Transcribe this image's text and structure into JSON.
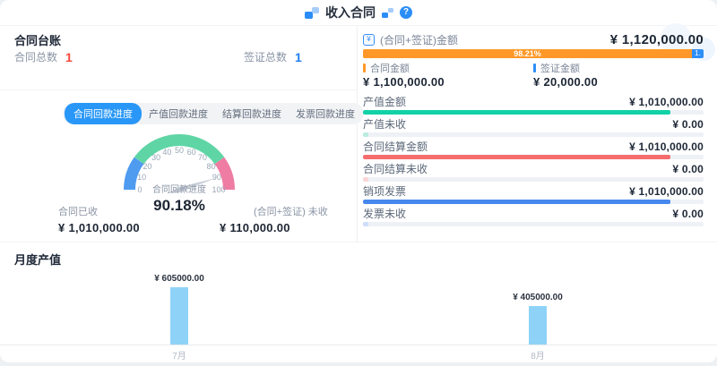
{
  "colors": {
    "accent_blue": "#2997f7",
    "stat_red": "#f5483b",
    "stat_blue": "#2080f0",
    "orange": "#ff9828",
    "bar_blue": "#2e8ef7",
    "teal": "#12d1a7",
    "coral": "#f56d6d",
    "royal_blue": "#4787ee",
    "monthly_bar_blue": "#8ed3f7",
    "gauge_blue": "#4f9bf0",
    "gauge_green": "#5fd5a5",
    "gauge_pink": "#ee7ca3",
    "needle_gray": "#cbd1d9"
  },
  "header": {
    "title": "收入合同",
    "help": "?"
  },
  "ledger": {
    "title": "合同台账",
    "stats": [
      {
        "label": "合同总数",
        "value": "1",
        "color": "#f5483b"
      },
      {
        "label": "签证总数",
        "value": "1",
        "color": "#2080f0"
      }
    ],
    "tabs": [
      {
        "label": "合同回款进度",
        "active": true
      },
      {
        "label": "产值回款进度",
        "active": false
      },
      {
        "label": "结算回款进度",
        "active": false
      },
      {
        "label": "发票回款进度",
        "active": false
      }
    ],
    "received": {
      "label": "合同已收",
      "value": "¥ 1,010,000.00"
    },
    "unreceived": {
      "label": "(合同+签证) 未收",
      "value": "¥ 110,000.00"
    }
  },
  "summary": {
    "total": {
      "label": "(合同+签证)金额",
      "value": "¥ 1,120,000.00"
    },
    "bar": {
      "contract_pct_label": "98.21%",
      "visa_pct_label": "1.",
      "contract_color": "#ff9828",
      "visa_color": "#2e8ef7"
    },
    "legend": [
      {
        "label": "合同金额",
        "value": "¥ 1,100,000.00",
        "color": "#ff9828"
      },
      {
        "label": "签证金额",
        "value": "¥ 20,000.00",
        "color": "#2e8ef7"
      }
    ],
    "rows": [
      {
        "label": "产值金额",
        "value": "¥ 1,010,000.00",
        "pct": 90.2,
        "color": "#12d1a7"
      },
      {
        "label": "产值未收",
        "value": "¥ 0.00",
        "pct": 1.5,
        "color": "#b9ecdf"
      },
      {
        "label": "合同结算金额",
        "value": "¥ 1,010,000.00",
        "pct": 90.2,
        "color": "#f56d6d"
      },
      {
        "label": "合同结算未收",
        "value": "¥ 0.00",
        "pct": 1.5,
        "color": "#fad6d6"
      },
      {
        "label": "销项发票",
        "value": "¥ 1,010,000.00",
        "pct": 90.2,
        "color": "#4787ee"
      },
      {
        "label": "发票未收",
        "value": "¥ 0.00",
        "pct": 1.5,
        "color": "#cfdef8"
      }
    ]
  },
  "chart_data": [
    {
      "type": "gauge",
      "title": "合同回款进度",
      "value": 90.18,
      "display": "90.18%",
      "min": 0,
      "max": 100,
      "ticks": [
        0,
        10,
        20,
        30,
        40,
        50,
        60,
        70,
        80,
        90,
        100
      ],
      "segments": [
        {
          "from": 0,
          "to": 20,
          "color": "#4f9bf0"
        },
        {
          "from": 20,
          "to": 80,
          "color": "#5fd5a5"
        },
        {
          "from": 80,
          "to": 100,
          "color": "#ee7ca3"
        }
      ]
    },
    {
      "type": "bar",
      "title": "月度产值",
      "categories": [
        "7月",
        "8月"
      ],
      "values": [
        605000,
        405000
      ],
      "value_labels": [
        "¥ 605000.00",
        "¥ 405000.00"
      ],
      "bar_color": "#8ed3f7",
      "xlabel": "",
      "ylabel": "",
      "ylim": [
        0,
        650000
      ],
      "grid": false,
      "legend_position": "none"
    }
  ]
}
